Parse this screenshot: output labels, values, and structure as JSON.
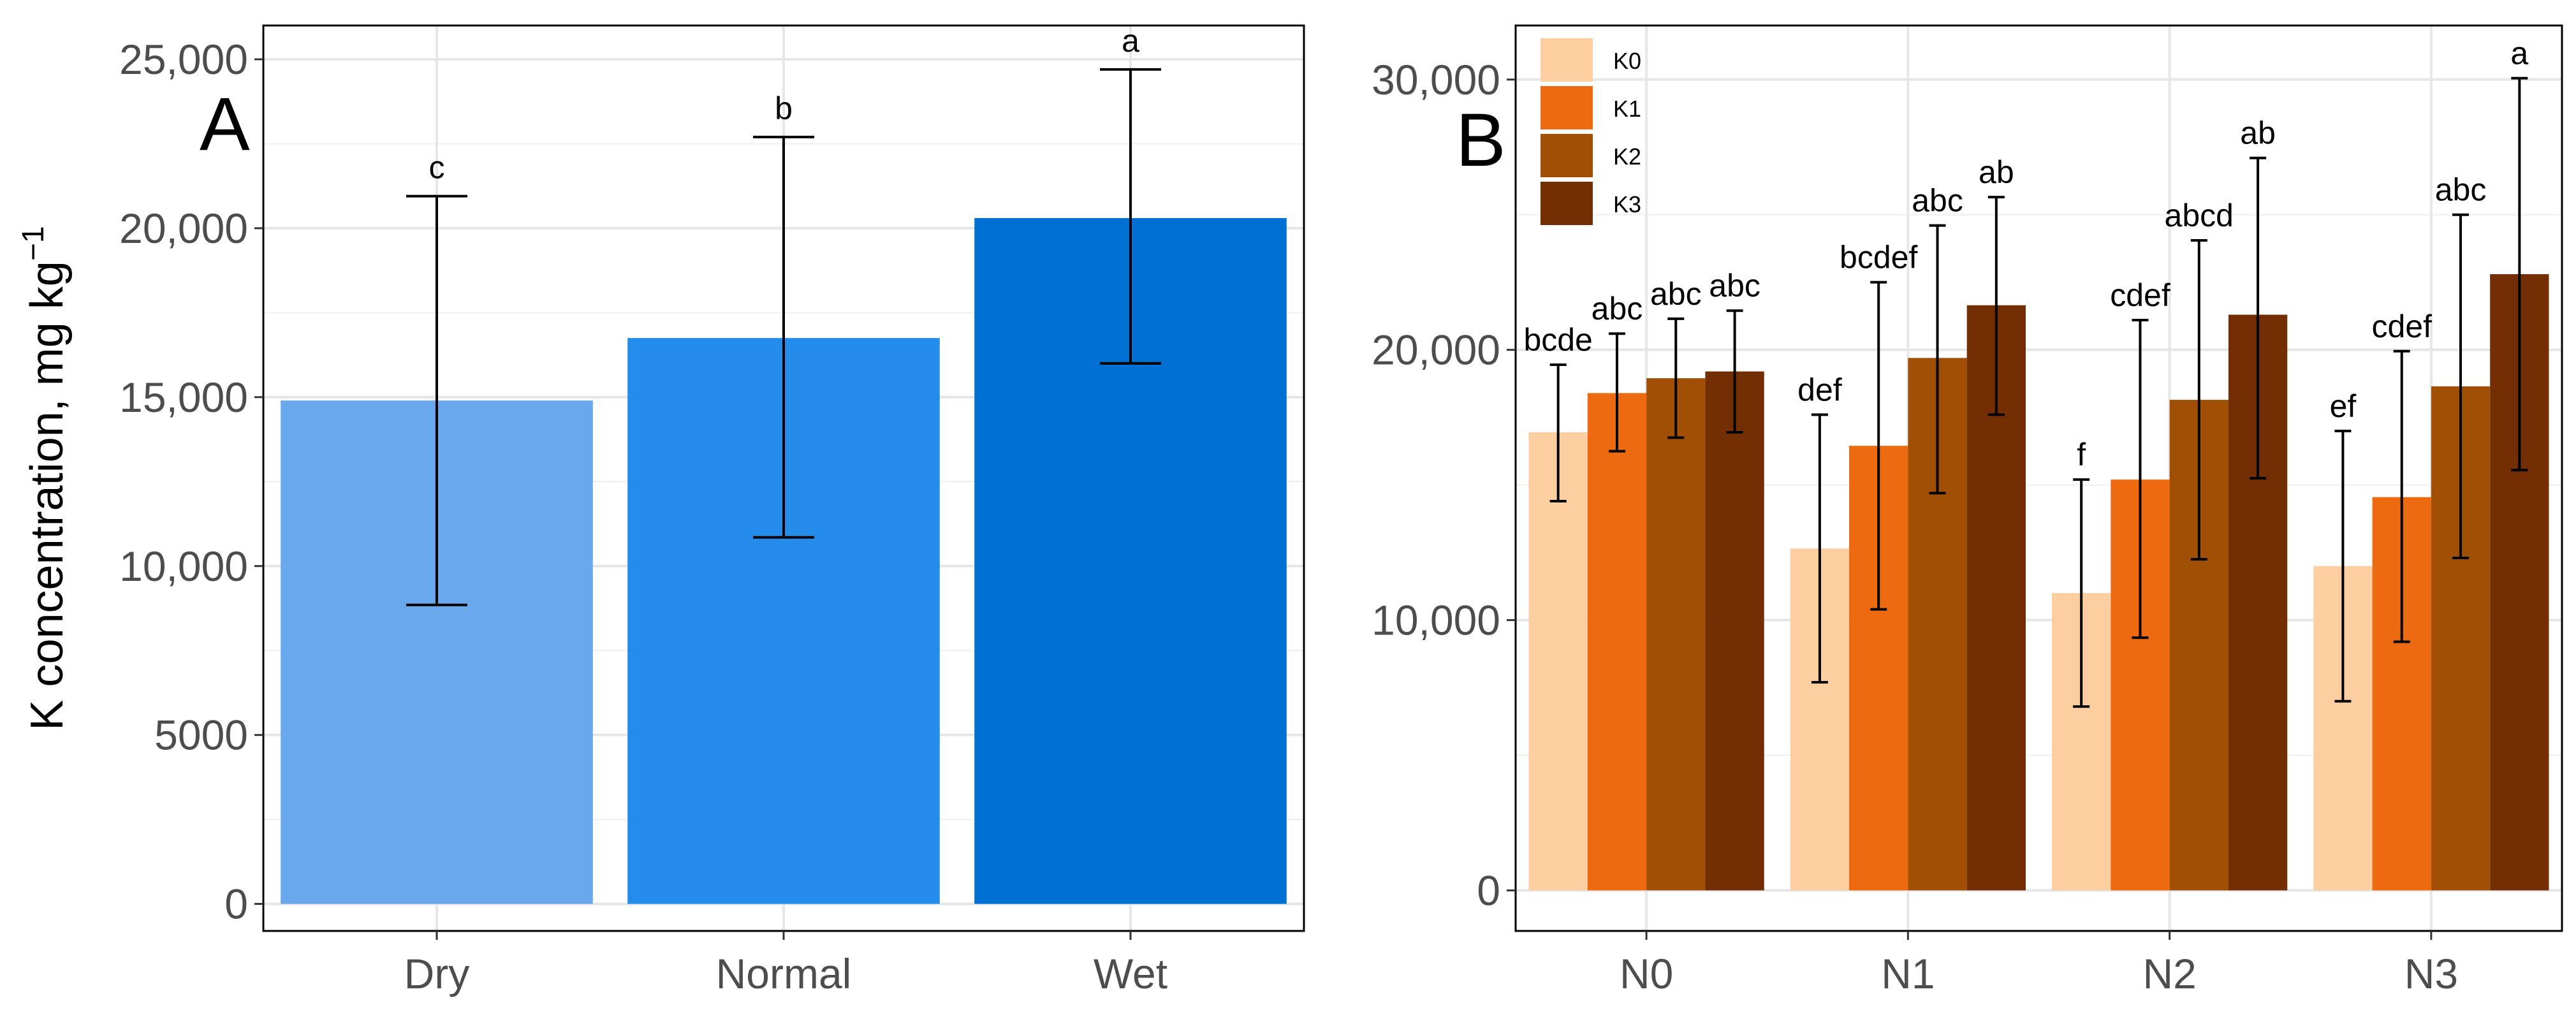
{
  "chart_data": [
    {
      "type": "bar",
      "panel_label": "A",
      "title": "",
      "xlabel": "",
      "ylabel": "K concentration, mg kg",
      "ylabel_superscript": "−1",
      "ylim": [
        -800,
        26000
      ],
      "yticks": [
        0,
        5000,
        10000,
        15000,
        20000,
        25000
      ],
      "ytick_labels": [
        "0",
        "5000",
        "10,000",
        "15,000",
        "20,000",
        "25,000"
      ],
      "categories": [
        "Dry",
        "Normal",
        "Wet"
      ],
      "values": [
        14900,
        16750,
        20300
      ],
      "err_low": [
        8850,
        10850,
        16000
      ],
      "err_high": [
        20950,
        22700,
        24700
      ],
      "letters": [
        "c",
        "b",
        "a"
      ],
      "colors": [
        "#6aa8ee",
        "#258ceb",
        "#0070d4"
      ]
    },
    {
      "type": "bar",
      "panel_label": "B",
      "title": "",
      "xlabel": "",
      "ylabel": "",
      "ylim": [
        -1500,
        32000
      ],
      "yticks": [
        0,
        10000,
        20000,
        30000
      ],
      "ytick_labels": [
        "0",
        "10,000",
        "20,000",
        "30,000"
      ],
      "categories": [
        "N0",
        "N1",
        "N2",
        "N3"
      ],
      "legend_position": "top-left",
      "series": [
        {
          "name": "K0",
          "color": "#fdcfa0",
          "values": [
            16950,
            12650,
            11000,
            12000
          ],
          "err_low": [
            14400,
            7700,
            6800,
            7000
          ],
          "err_high": [
            19450,
            17600,
            15200,
            17000
          ],
          "letters": [
            "bcde",
            "def",
            "f",
            "ef"
          ]
        },
        {
          "name": "K1",
          "color": "#ee6a11",
          "values": [
            18400,
            16450,
            15200,
            14550
          ],
          "err_low": [
            16250,
            10400,
            9350,
            9200
          ],
          "err_high": [
            20600,
            22500,
            21100,
            19950
          ],
          "letters": [
            "abc",
            "bcdef",
            "cdef",
            "cdef"
          ]
        },
        {
          "name": "K2",
          "color": "#a24f06",
          "values": [
            18950,
            19700,
            18150,
            18650
          ],
          "err_low": [
            16750,
            14700,
            12250,
            12300
          ],
          "err_high": [
            21150,
            24600,
            24050,
            25000
          ],
          "letters": [
            "abc",
            "abc",
            "abcd",
            "abc"
          ]
        },
        {
          "name": "K3",
          "color": "#732e04",
          "values": [
            19200,
            21650,
            21300,
            22800
          ],
          "err_low": [
            16950,
            17600,
            15250,
            15550
          ],
          "err_high": [
            21450,
            25650,
            27100,
            30050
          ],
          "letters": [
            "abc",
            "ab",
            "ab",
            "a"
          ]
        }
      ]
    }
  ]
}
